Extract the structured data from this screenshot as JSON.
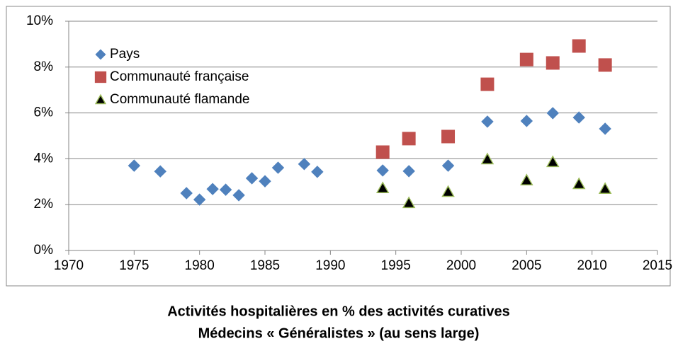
{
  "chart_data": {
    "type": "scatter",
    "title": "Activités hospitalières en % des activités curatives",
    "subtitle": "Médecins « Généralistes » (au sens large)",
    "xlim": [
      1970,
      2015
    ],
    "xticks": [
      1970,
      1975,
      1980,
      1985,
      1990,
      1995,
      2000,
      2005,
      2010,
      2015
    ],
    "ylim": [
      0,
      10
    ],
    "yticks": [
      {
        "value": 0,
        "label": "0%"
      },
      {
        "value": 2,
        "label": "2%"
      },
      {
        "value": 4,
        "label": "4%"
      },
      {
        "value": 6,
        "label": "6%"
      },
      {
        "value": 8,
        "label": "8%"
      },
      {
        "value": 10,
        "label": "10%"
      }
    ],
    "grid": true,
    "legend": "upper left",
    "series": [
      {
        "name": "Pays",
        "color": "#4f81bd",
        "marker": "diamond",
        "x": [
          1975,
          1977,
          1979,
          1980,
          1981,
          1982,
          1983,
          1984,
          1985,
          1986,
          1988,
          1989,
          1994,
          1996,
          1999,
          2002,
          2005,
          2007,
          2009,
          2011
        ],
        "values": [
          3.7,
          3.45,
          2.5,
          2.22,
          2.68,
          2.65,
          2.41,
          3.15,
          3.02,
          3.61,
          3.77,
          3.43,
          3.49,
          3.46,
          3.7,
          5.62,
          5.65,
          5.99,
          5.8,
          5.31
        ]
      },
      {
        "name": "Communauté française",
        "color": "#c0504d",
        "marker": "square",
        "x": [
          1994,
          1996,
          1999,
          2002,
          2005,
          2007,
          2009,
          2011
        ],
        "values": [
          4.29,
          4.88,
          4.97,
          7.25,
          8.33,
          8.18,
          8.92,
          8.09
        ]
      },
      {
        "name": "Communauté flamande",
        "color": "#000000",
        "edgecolor": "#9bbb59",
        "marker": "triangle",
        "x": [
          1994,
          1996,
          1999,
          2002,
          2005,
          2007,
          2009,
          2011
        ],
        "values": [
          2.72,
          2.07,
          2.56,
          3.98,
          3.06,
          3.86,
          2.9,
          2.69
        ]
      }
    ]
  }
}
